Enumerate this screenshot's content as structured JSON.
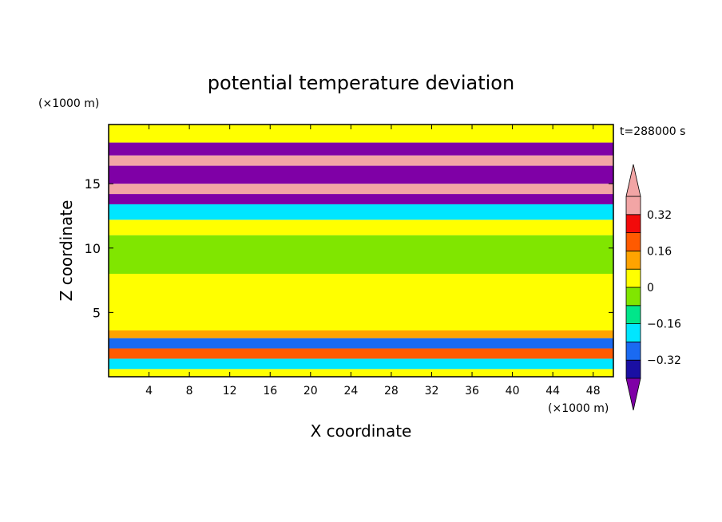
{
  "chart_data": {
    "type": "heatmap",
    "title": "potential temperature deviation",
    "xlabel": "X coordinate",
    "ylabel": "Z coordinate",
    "x_unit": "(×1000 m)",
    "z_unit": "(×1000 m)",
    "time_label": "t=288000 s",
    "x_range": [
      0,
      50
    ],
    "z_range": [
      0,
      19.6
    ],
    "x_ticks": [
      4,
      8,
      12,
      16,
      20,
      24,
      28,
      32,
      36,
      40,
      44,
      48
    ],
    "z_ticks": [
      5,
      10,
      15
    ],
    "colorbar": {
      "levels": [
        -0.4,
        -0.32,
        -0.24,
        -0.16,
        -0.08,
        0,
        0.08,
        0.16,
        0.24,
        0.32,
        0.4
      ],
      "tick_labels": [
        "0.32",
        "0.16",
        "0",
        "−0.16",
        "−0.32"
      ],
      "tick_values": [
        0.32,
        0.16,
        0,
        -0.16,
        -0.32
      ],
      "colors": [
        "#7f00a6",
        "#1a0fa3",
        "#1a6af2",
        "#00e6ff",
        "#00e68a",
        "#80e600",
        "#ffff00",
        "#ffa300",
        "#ff5a00",
        "#f20a0a",
        "#f2a5a5"
      ]
    },
    "bands": [
      {
        "z": [
          0.0,
          0.6
        ],
        "value": 0.05
      },
      {
        "z": [
          0.6,
          1.4
        ],
        "value": -0.2
      },
      {
        "z": [
          1.4,
          2.2
        ],
        "value": 0.2
      },
      {
        "z": [
          2.2,
          3.0
        ],
        "value": -0.25
      },
      {
        "z": [
          3.0,
          3.6
        ],
        "value": 0.15
      },
      {
        "z": [
          3.6,
          8.0
        ],
        "value": 0.02
      },
      {
        "z": [
          8.0,
          11.0
        ],
        "value": -0.03
      },
      {
        "z": [
          11.0,
          12.2
        ],
        "value": 0.02
      },
      {
        "z": [
          12.2,
          13.4
        ],
        "value": -0.2
      },
      {
        "z": [
          13.4,
          14.2
        ],
        "value": -0.45
      },
      {
        "z": [
          14.2,
          15.0
        ],
        "value": 0.45
      },
      {
        "z": [
          15.0,
          16.4
        ],
        "value": -0.45
      },
      {
        "z": [
          16.4,
          17.2
        ],
        "value": 0.45
      },
      {
        "z": [
          17.2,
          18.2
        ],
        "value": -0.45
      },
      {
        "z": [
          18.2,
          19.6
        ],
        "value": 0.03
      }
    ]
  },
  "colors": {
    "frame": "#000000",
    "background": "#ffffff"
  }
}
